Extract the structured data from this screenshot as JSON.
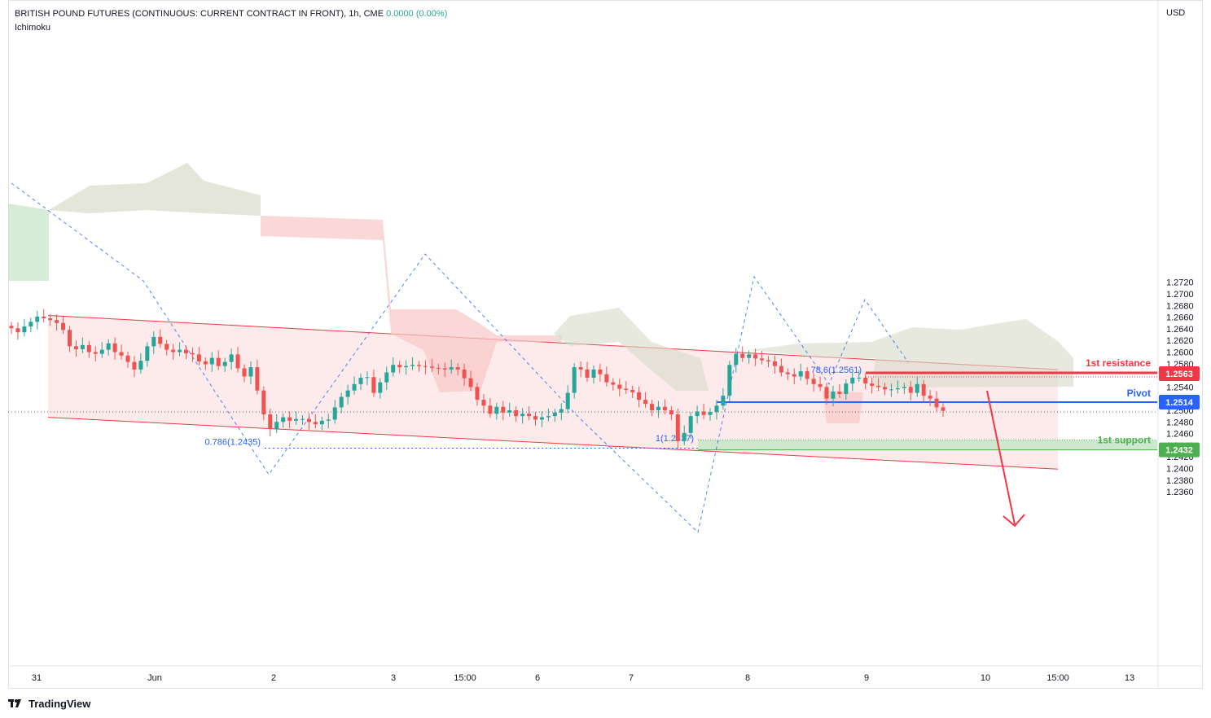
{
  "header": {
    "symbol_line": "BRITISH POUND FUTURES (CONTINUOUS: CURRENT CONTRACT IN FRONT), 1h, CME",
    "change_value": "0.0000",
    "change_pct": "(0.00%)",
    "indicator": "Ichimoku"
  },
  "axis": {
    "currency": "USD",
    "y_ticks": [
      "1.2720",
      "1.2700",
      "1.2680",
      "1.2660",
      "1.2640",
      "1.2620",
      "1.2600",
      "1.2580",
      "1.2540",
      "1.2520",
      "1.2500",
      "1.2480",
      "1.2460",
      "1.2440",
      "1.2420",
      "1.2400",
      "1.2380",
      "1.2360"
    ],
    "x_ticks": [
      "31",
      "Jun",
      "2",
      "3",
      "15:00",
      "6",
      "7",
      "8",
      "9",
      "10",
      "15:00",
      "13"
    ]
  },
  "levels": {
    "resistance_label": "1st resistance",
    "resistance_value": "1.2563",
    "pivot_label": "Pivot",
    "pivot_value": "1.2514",
    "support_label": "1st support",
    "support_value": "1.2432"
  },
  "fib_labels": {
    "fib_786_left": "0.786(1.2435)",
    "fib_1": "1(1.2437)",
    "fib_786_right": "78.6(1.2561)"
  },
  "footer": {
    "brand": "TradingView"
  },
  "colors": {
    "up": "#26a69a",
    "down": "#ef5350",
    "channel_fill": "#fde8e8",
    "channel_line": "#f23645",
    "resistance": "#f23645",
    "pivot": "#2962ff",
    "support": "#4caf50"
  },
  "chart_data": {
    "type": "candlestick",
    "title": "BRITISH POUND FUTURES (CONTINUOUS: CURRENT CONTRACT IN FRONT), 1h, CME",
    "ylabel": "USD",
    "ylim": [
      1.235,
      1.2725
    ],
    "x_tick_labels": [
      "31",
      "Jun",
      "2",
      "3",
      "15:00",
      "6",
      "7",
      "8",
      "9",
      "10",
      "15:00",
      "13"
    ],
    "close_path": [
      1.2641,
      1.2634,
      1.2644,
      1.2652,
      1.2661,
      1.2658,
      1.2655,
      1.265,
      1.2638,
      1.261,
      1.2605,
      1.2612,
      1.26,
      1.2597,
      1.2604,
      1.2615,
      1.26,
      1.2594,
      1.2583,
      1.257,
      1.2585,
      1.261,
      1.2626,
      1.2614,
      1.2604,
      1.26,
      1.2604,
      1.2598,
      1.2596,
      1.2584,
      1.2579,
      1.259,
      1.2576,
      1.2583,
      1.2596,
      1.2572,
      1.2558,
      1.2574,
      1.2534,
      1.2493,
      1.2468,
      1.248,
      1.2488,
      1.2482,
      1.2485,
      1.2485,
      1.248,
      1.2476,
      1.2482,
      1.2484,
      1.2505,
      1.2523,
      1.2534,
      1.2545,
      1.2556,
      1.2557,
      1.253,
      1.2548,
      1.2565,
      1.2578,
      1.2574,
      1.2576,
      1.2578,
      1.2576,
      1.2575,
      1.2573,
      1.2572,
      1.257,
      1.2574,
      1.257,
      1.2555,
      1.254,
      1.2518,
      1.2508,
      1.2494,
      1.2506,
      1.2496,
      1.25,
      1.249,
      1.2494,
      1.249,
      1.2484,
      1.2488,
      1.249,
      1.2496,
      1.2502,
      1.253,
      1.2574,
      1.257,
      1.2556,
      1.257,
      1.2562,
      1.2548,
      1.2544,
      1.2537,
      1.2535,
      1.2531,
      1.2518,
      1.2511,
      1.25,
      1.2506,
      1.25,
      1.2493,
      1.2447,
      1.2461,
      1.249,
      1.2498,
      1.2492,
      1.2497,
      1.2508,
      1.2525,
      1.2578,
      1.2597,
      1.259,
      1.2596,
      1.2589,
      1.2586,
      1.2584,
      1.2576,
      1.2565,
      1.2562,
      1.2558,
      1.2567,
      1.2554,
      1.2545,
      1.254,
      1.252,
      1.2532,
      1.2528,
      1.2546,
      1.2556,
      1.2556,
      1.2546,
      1.2542,
      1.254,
      1.2536,
      1.2536,
      1.2538,
      1.254,
      1.253,
      1.2545,
      1.2525,
      1.252,
      1.2505,
      1.2499
    ],
    "channel": {
      "upper": [
        [
          1.2663,
          "start"
        ],
        [
          1.257,
          "end"
        ]
      ],
      "lower": [
        [
          1.2488,
          "start"
        ],
        [
          1.2399,
          "end"
        ]
      ]
    },
    "ichimoku_cloud": true,
    "levels": [
      {
        "name": "1st resistance",
        "value": 1.2563
      },
      {
        "name": "Pivot",
        "value": 1.2514
      },
      {
        "name": "1st support",
        "value": 1.2432
      }
    ],
    "last_price": 1.2497,
    "grid": false
  }
}
